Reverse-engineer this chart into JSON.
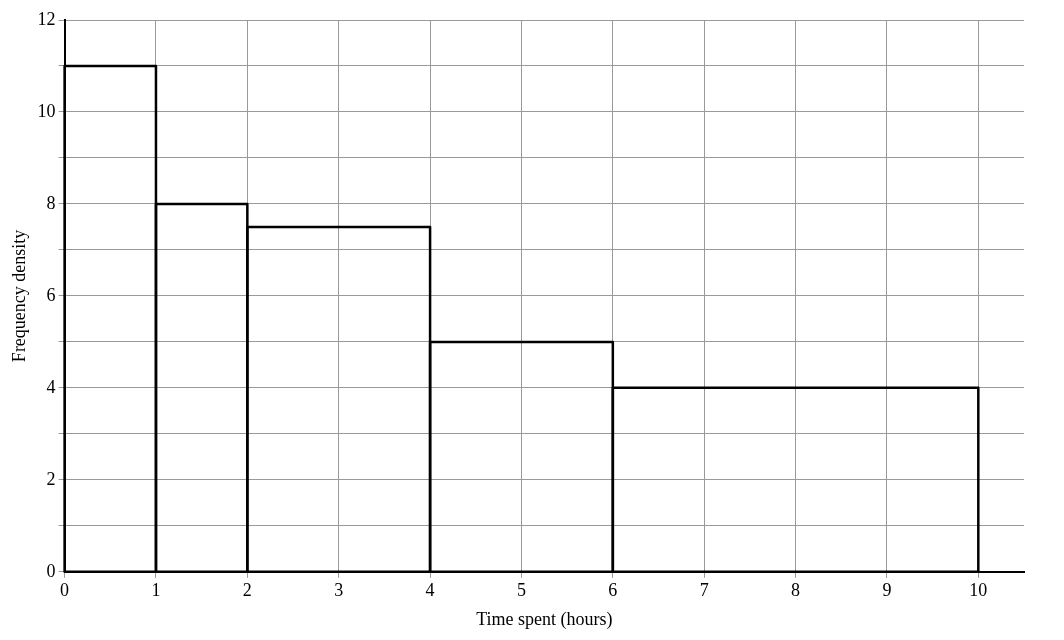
{
  "chart_data": {
    "type": "histogram",
    "xlabel": "Time spent (hours)",
    "ylabel": "Frequency density",
    "bins": [
      0,
      1,
      2,
      4,
      6,
      10
    ],
    "values": [
      11,
      8,
      7.5,
      5,
      4
    ],
    "color": "#000000",
    "xlim": [
      0,
      10.5
    ],
    "xticks": [
      0,
      1,
      2,
      3,
      4,
      5,
      6,
      7,
      8,
      9,
      10
    ],
    "ylim": [
      0,
      12
    ],
    "yticks": [
      0,
      {
        "value": 1,
        "label": null
      },
      2,
      {
        "value": 3,
        "label": null
      },
      4,
      {
        "value": 5,
        "label": null
      },
      6,
      {
        "value": 7,
        "label": null
      },
      8,
      {
        "value": 9,
        "label": null
      },
      10,
      {
        "value": 11,
        "label": null
      },
      12
    ],
    "grid": true
  }
}
